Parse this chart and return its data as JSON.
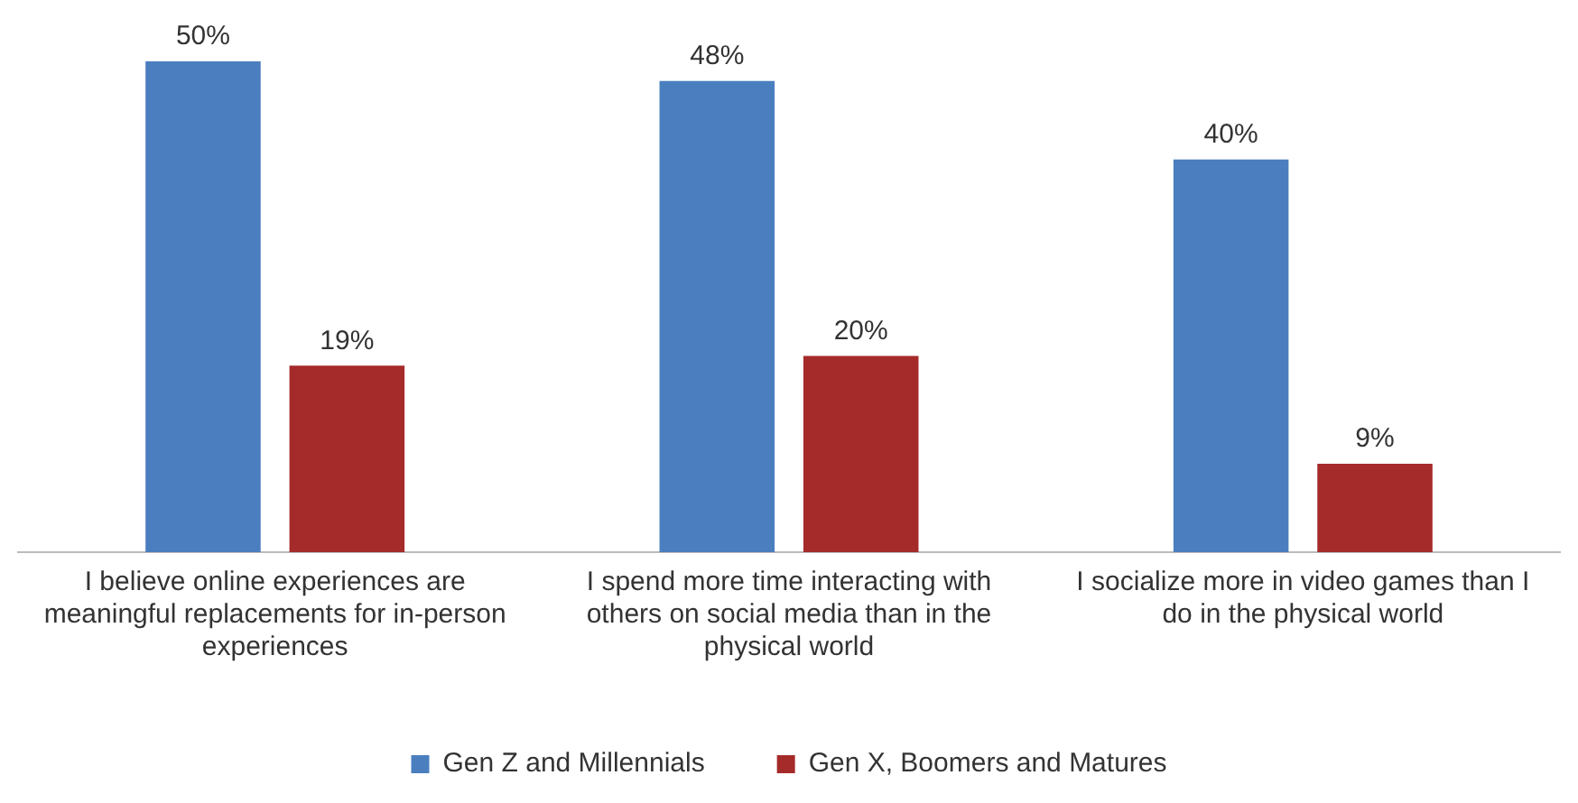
{
  "chart_data": {
    "type": "bar",
    "categories": [
      "I believe online experiences are meaningful replacements for in-person experiences",
      "I spend more time interacting with others on social media than in the physical world",
      "I socialize more in video games than I do in the physical world"
    ],
    "series": [
      {
        "name": "Gen Z and Millennials",
        "color": "#4a7ebf",
        "values": [
          50,
          48,
          40
        ],
        "value_labels": [
          "50%",
          "48%",
          "40%"
        ]
      },
      {
        "name": "Gen X, Boomers and Matures",
        "color": "#a52a2a",
        "values": [
          19,
          20,
          9
        ],
        "value_labels": [
          "19%",
          "20%",
          "9%"
        ]
      }
    ],
    "grid": false,
    "legend": "bottom"
  }
}
